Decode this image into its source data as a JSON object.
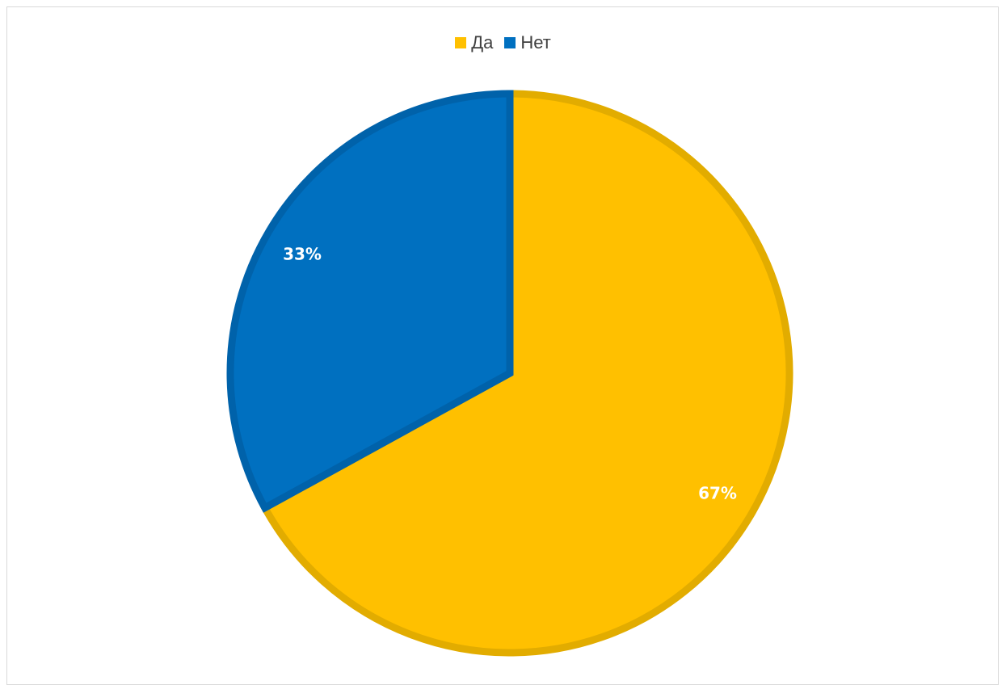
{
  "chart_data": {
    "type": "pie",
    "categories": [
      "Да",
      "Нет"
    ],
    "values": [
      67,
      33
    ],
    "data_labels": [
      "67%",
      "33%"
    ],
    "colors": [
      "#FFC000",
      "#0070C0"
    ],
    "border_colors": [
      "#E2AC00",
      "#0062AA"
    ],
    "legend_position": "top",
    "start_angle_degrees": 0,
    "direction": "clockwise"
  }
}
